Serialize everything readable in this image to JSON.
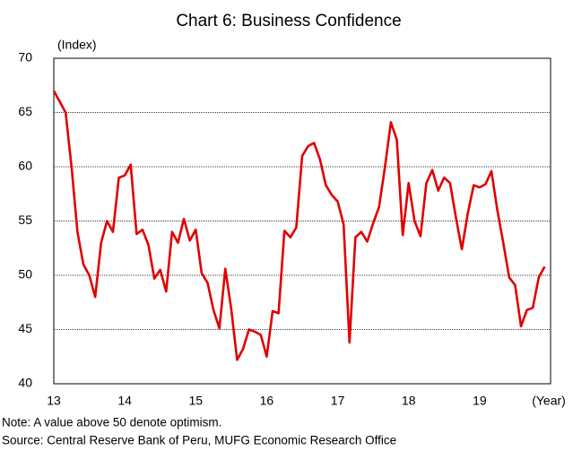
{
  "chart_data": {
    "type": "line",
    "title": "Chart 6: Business Confidence",
    "y_label": "(Index)",
    "x_label": "(Year)",
    "notes": [
      "Note: A value above 50 denote optimism.",
      "Source: Central Reserve Bank of Peru, MUFG Economic Research Office"
    ],
    "categories": [
      "13",
      null,
      null,
      null,
      null,
      null,
      null,
      null,
      null,
      null,
      null,
      null,
      "14",
      null,
      null,
      null,
      null,
      null,
      null,
      null,
      null,
      null,
      null,
      null,
      "15",
      null,
      null,
      null,
      null,
      null,
      null,
      null,
      null,
      null,
      null,
      null,
      "16",
      null,
      null,
      null,
      null,
      null,
      null,
      null,
      null,
      null,
      null,
      null,
      "17",
      null,
      null,
      null,
      null,
      null,
      null,
      null,
      null,
      null,
      null,
      null,
      "18",
      null,
      null,
      null,
      null,
      null,
      null,
      null,
      null,
      null,
      null,
      null,
      "19",
      null,
      null,
      null,
      null,
      null,
      null,
      null,
      null,
      null,
      null,
      null
    ],
    "series": [
      {
        "name": "Business Confidence",
        "color": "#e00000",
        "values": [
          67,
          66,
          65,
          60,
          54,
          51,
          50,
          48,
          53,
          55,
          54,
          59,
          59.2,
          60.2,
          53.8,
          54.2,
          52.8,
          49.7,
          50.5,
          48.5,
          54,
          53,
          55.2,
          53.2,
          54.2,
          50.2,
          49.3,
          46.8,
          45.1,
          50.6,
          46.9,
          42.2,
          43.2,
          45,
          44.8,
          44.5,
          42.5,
          46.7,
          46.5,
          54.1,
          53.5,
          54.4,
          61,
          61.9,
          62.2,
          60.7,
          58.3,
          57.4,
          56.8,
          54.7,
          43.8,
          53.5,
          54,
          53.1,
          54.8,
          56.3,
          60,
          64.1,
          62.5,
          53.7,
          58.5,
          55,
          53.6,
          58.5,
          59.7,
          57.8,
          59,
          58.5,
          55.3,
          52.4,
          55.7,
          58.3,
          58.1,
          58.4,
          59.6,
          56,
          53,
          49.8,
          49.1,
          45.3,
          46.8,
          47,
          49.8,
          50.8
        ]
      }
    ],
    "ylim": [
      40,
      70
    ],
    "yticks": [
      40,
      45,
      50,
      55,
      60,
      65,
      70
    ],
    "grid": true
  }
}
